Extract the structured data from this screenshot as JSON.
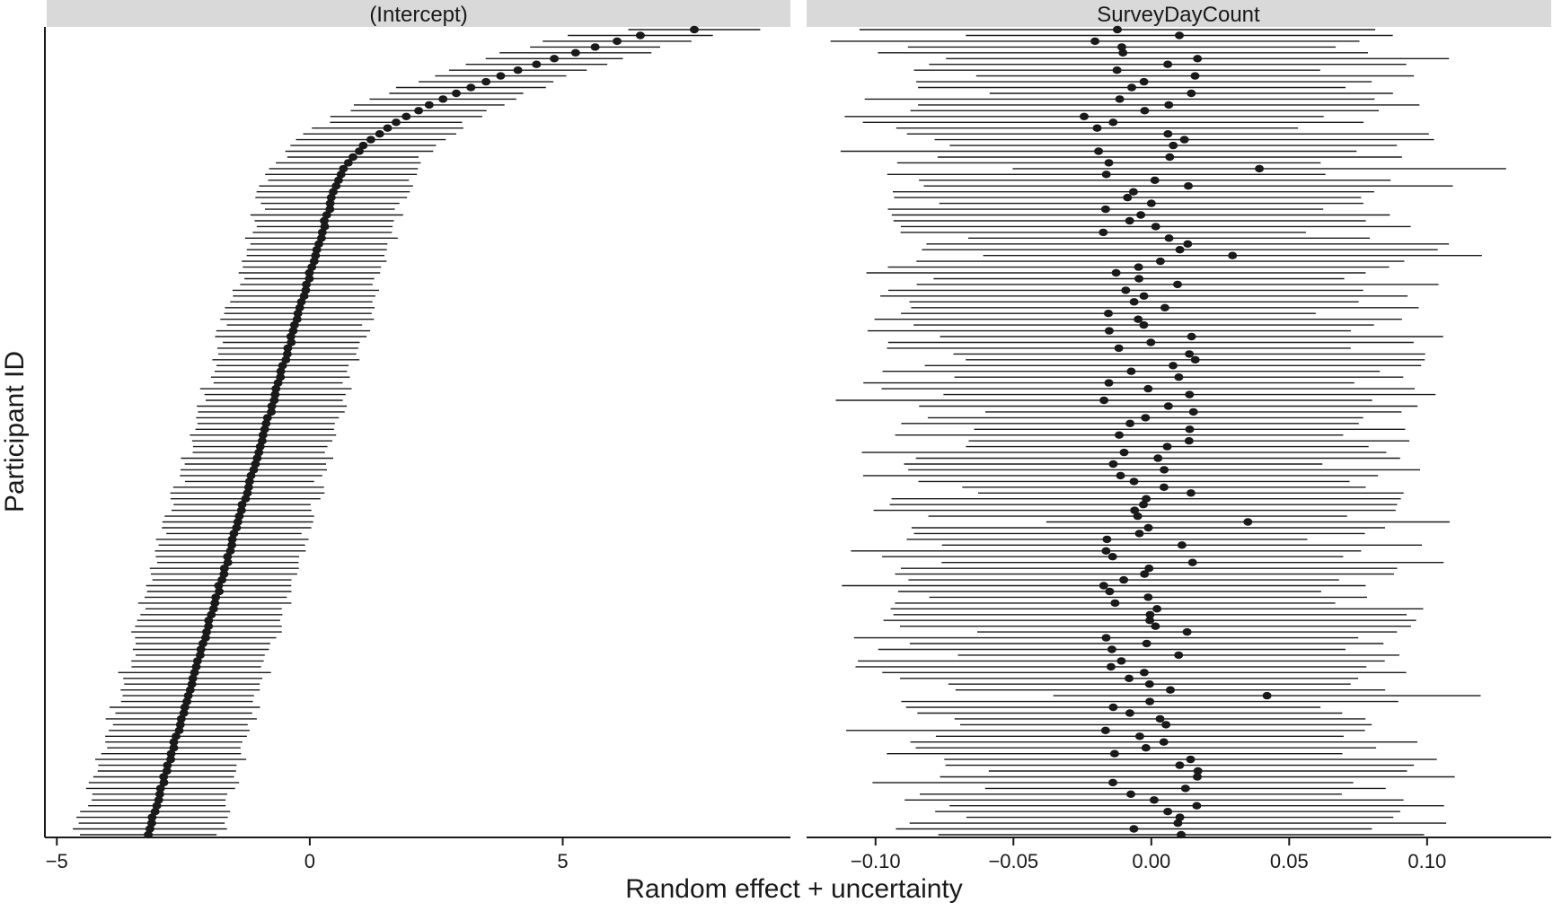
{
  "chart_data": {
    "type": "scatter",
    "xlabel": "Random effect + uncertainty",
    "ylabel": "Participant ID",
    "panels": [
      {
        "title": "(Intercept)",
        "xlim": [
          -5.2,
          9.5
        ],
        "xticks": [
          -5,
          0,
          5
        ],
        "xtick_labels": [
          "-5",
          "0",
          "5"
        ],
        "point_x_range": [
          -3.2,
          7.6
        ],
        "ci_half_width": 1.4
      },
      {
        "title": "SurveyDayCount",
        "xlim": [
          -0.125,
          0.145
        ],
        "xticks": [
          -0.1,
          -0.05,
          0.0,
          0.05,
          0.1
        ],
        "xtick_labels": [
          "-0.10",
          "-0.05",
          "0.00",
          "0.05",
          "0.10"
        ],
        "point_x_range": [
          -0.025,
          0.044
        ],
        "ci_half_width": 0.085
      }
    ],
    "n_participants": 140
  }
}
